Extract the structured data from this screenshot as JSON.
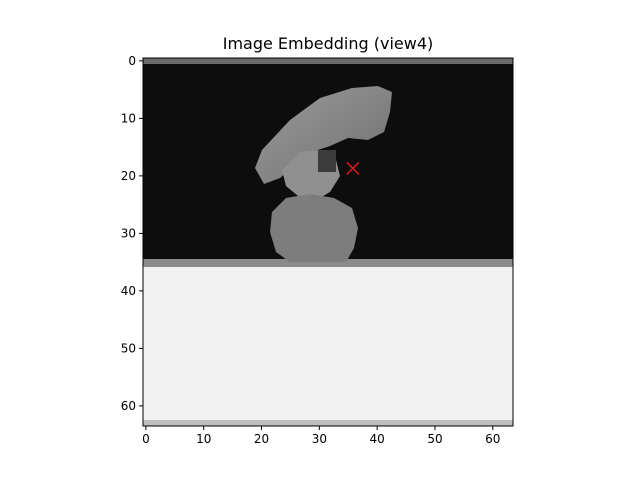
{
  "chart_data": {
    "type": "heatmap",
    "title": "Image Embedding (view4)",
    "xlabel": "",
    "ylabel": "",
    "image_size": [
      64,
      64
    ],
    "xlim": [
      -0.5,
      63.5
    ],
    "ylim": [
      63.5,
      -0.5
    ],
    "x_ticks": [
      0,
      10,
      20,
      30,
      40,
      50,
      60
    ],
    "y_ticks": [
      0,
      10,
      20,
      30,
      40,
      50,
      60
    ],
    "x_tick_labels": [
      "0",
      "10",
      "20",
      "30",
      "40",
      "50",
      "60"
    ],
    "y_tick_labels": [
      "0",
      "10",
      "20",
      "30",
      "40",
      "50",
      "60"
    ],
    "colormap": "gray",
    "colors": {
      "background_dark": "#0d0d0d",
      "floor_light": "#f2f2f2",
      "object_mid": "#8a8a8a",
      "marker": "#e41a1c"
    },
    "marker": {
      "shape": "x",
      "x": 35.8,
      "y": 18.7
    },
    "grid": false,
    "legend": "none"
  }
}
